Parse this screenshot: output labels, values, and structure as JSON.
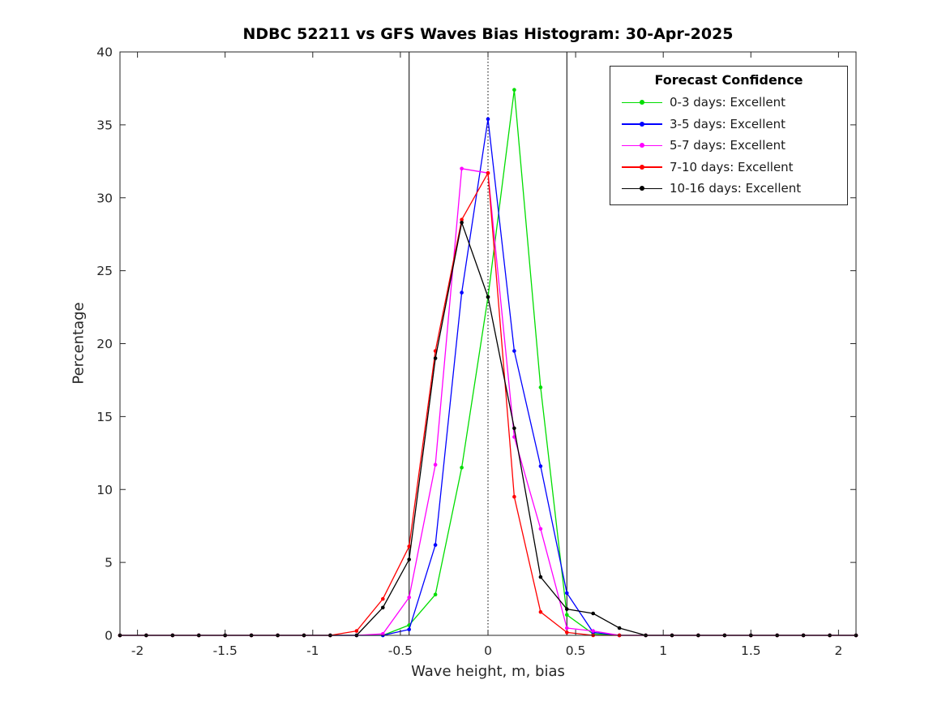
{
  "chart_data": {
    "type": "line",
    "title": "NDBC 52211 vs GFS Waves Bias Histogram: 30-Apr-2025",
    "xlabel": "Wave height, m, bias",
    "ylabel": "Percentage",
    "xlim": [
      -2.1,
      2.1
    ],
    "ylim": [
      0,
      40
    ],
    "xticks": [
      -2,
      -1.5,
      -1,
      -0.5,
      0,
      0.5,
      1,
      1.5,
      2
    ],
    "xtick_labels": [
      "-2",
      "-1.5",
      "-1",
      "-0.5",
      "0",
      "0.5",
      "1",
      "1.5",
      "2"
    ],
    "yticks": [
      0,
      5,
      10,
      15,
      20,
      25,
      30,
      35,
      40
    ],
    "ytick_labels": [
      "0",
      "5",
      "10",
      "15",
      "20",
      "25",
      "30",
      "35",
      "40"
    ],
    "grid": false,
    "legend_title": "Forecast Confidence",
    "legend_position": "top-right",
    "axis_color": "#262626",
    "reference_lines": {
      "solid_vertical": [
        -0.45,
        0.45
      ],
      "dotted_vertical": [
        0
      ]
    },
    "x": [
      -2.1,
      -1.95,
      -1.8,
      -1.65,
      -1.5,
      -1.35,
      -1.2,
      -1.05,
      -0.9,
      -0.75,
      -0.6,
      -0.45,
      -0.3,
      -0.15,
      0,
      0.15,
      0.3,
      0.45,
      0.6,
      0.75,
      0.9,
      1.05,
      1.2,
      1.35,
      1.5,
      1.65,
      1.8,
      1.95,
      2.1
    ],
    "series": [
      {
        "name": "0-3 days: Excellent",
        "color": "#00dd00",
        "values": [
          0,
          0,
          0,
          0,
          0,
          0,
          0,
          0,
          0,
          0,
          0,
          0.7,
          2.8,
          11.5,
          23.2,
          37.4,
          17.0,
          1.4,
          0.1,
          0,
          0,
          0,
          0,
          0,
          0,
          0,
          0,
          0,
          0
        ]
      },
      {
        "name": "3-5 days: Excellent",
        "color": "#0000ff",
        "values": [
          0,
          0,
          0,
          0,
          0,
          0,
          0,
          0,
          0,
          0,
          0,
          0.4,
          6.2,
          23.5,
          35.4,
          19.5,
          11.6,
          2.9,
          0.2,
          0,
          0,
          0,
          0,
          0,
          0,
          0,
          0,
          0,
          0
        ]
      },
      {
        "name": "5-7 days: Excellent",
        "color": "#ff00ff",
        "values": [
          0,
          0,
          0,
          0,
          0,
          0,
          0,
          0,
          0,
          0,
          0.1,
          2.6,
          11.7,
          32.0,
          31.7,
          13.6,
          7.3,
          0.5,
          0.3,
          0,
          0,
          0,
          0,
          0,
          0,
          0,
          0,
          0,
          0
        ]
      },
      {
        "name": "7-10 days: Excellent",
        "color": "#ff0000",
        "values": [
          0,
          0,
          0,
          0,
          0,
          0,
          0,
          0,
          0,
          0.3,
          2.5,
          6.1,
          19.5,
          28.5,
          31.7,
          9.5,
          1.6,
          0.2,
          0,
          0,
          0,
          0,
          0,
          0,
          0,
          0,
          0,
          0,
          0
        ]
      },
      {
        "name": "10-16 days: Excellent",
        "color": "#000000",
        "values": [
          0,
          0,
          0,
          0,
          0,
          0,
          0,
          0,
          0,
          0,
          1.9,
          5.2,
          19.0,
          28.3,
          23.2,
          14.2,
          4.0,
          1.8,
          1.5,
          0.5,
          0,
          0,
          0,
          0,
          0,
          0,
          0,
          0,
          0
        ]
      }
    ]
  }
}
